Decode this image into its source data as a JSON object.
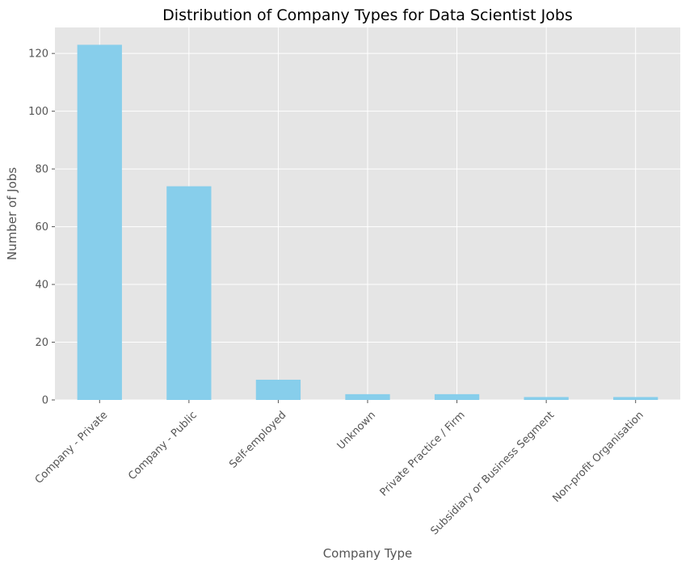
{
  "chart_data": {
    "type": "bar",
    "title": "Distribution of Company Types for Data Scientist Jobs",
    "xlabel": "Company Type",
    "ylabel": "Number of Jobs",
    "categories": [
      "Company - Private",
      "Company - Public",
      "Self-employed",
      "Unknown",
      "Private Practice / Firm",
      "Subsidiary or Business Segment",
      "Non-profit Organisation"
    ],
    "values": [
      123,
      74,
      7,
      2,
      2,
      1,
      1
    ],
    "ylim": [
      0,
      129
    ],
    "yticks": [
      0,
      20,
      40,
      60,
      80,
      100,
      120
    ],
    "grid": true,
    "legend": "none",
    "bar_color": "#87CEEB",
    "background_color": "#E5E5E5",
    "grid_color": "#FFFFFF",
    "text_color": "#555555",
    "title_color": "#000000"
  }
}
